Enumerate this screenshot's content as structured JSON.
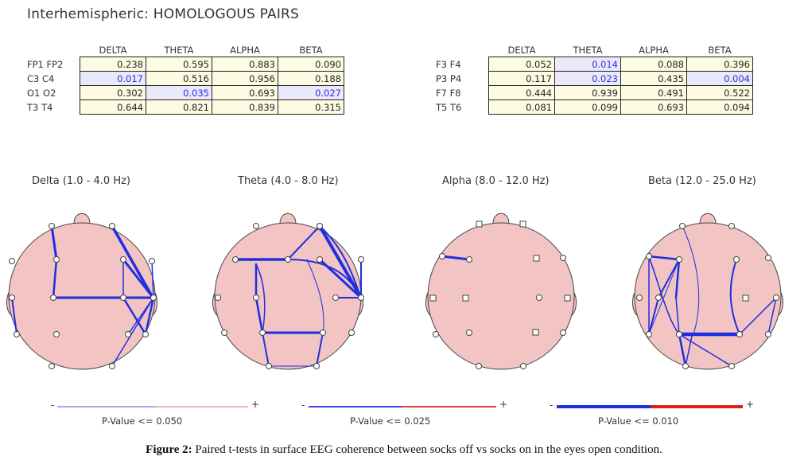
{
  "title": "Interhemispheric:  HOMOLOGOUS PAIRS",
  "bands": [
    "DELTA",
    "THETA",
    "ALPHA",
    "BETA"
  ],
  "table_left": {
    "rows": [
      {
        "label": "FP1  FP2",
        "values": [
          "0.238",
          "0.595",
          "0.883",
          "0.090"
        ],
        "sig": [
          false,
          false,
          false,
          false
        ]
      },
      {
        "label": "C3  C4",
        "values": [
          "0.017",
          "0.516",
          "0.956",
          "0.188"
        ],
        "sig": [
          true,
          false,
          false,
          false
        ]
      },
      {
        "label": "O1  O2",
        "values": [
          "0.302",
          "0.035",
          "0.693",
          "0.027"
        ],
        "sig": [
          false,
          true,
          false,
          true
        ]
      },
      {
        "label": "T3  T4",
        "values": [
          "0.644",
          "0.821",
          "0.839",
          "0.315"
        ],
        "sig": [
          false,
          false,
          false,
          false
        ]
      }
    ]
  },
  "table_right": {
    "rows": [
      {
        "label": "F3  F4",
        "values": [
          "0.052",
          "0.014",
          "0.088",
          "0.396"
        ],
        "sig": [
          false,
          true,
          false,
          false
        ]
      },
      {
        "label": "P3  P4",
        "values": [
          "0.117",
          "0.023",
          "0.435",
          "0.004"
        ],
        "sig": [
          false,
          true,
          false,
          true
        ]
      },
      {
        "label": "F7  F8",
        "values": [
          "0.444",
          "0.939",
          "0.491",
          "0.522"
        ],
        "sig": [
          false,
          false,
          false,
          false
        ]
      },
      {
        "label": "T5  T6",
        "values": [
          "0.081",
          "0.099",
          "0.693",
          "0.094"
        ],
        "sig": [
          false,
          false,
          false,
          false
        ]
      }
    ]
  },
  "heads": [
    {
      "label": "Delta (1.0 - 4.0 Hz)",
      "legend": "P-Value <= 0.050"
    },
    {
      "label": "Theta (4.0 - 8.0 Hz)",
      "legend": "P-Value <= 0.025"
    },
    {
      "label": "Alpha (8.0 - 12.0 Hz)",
      "legend": "P-Value <= 0.010"
    },
    {
      "label": "Beta (12.0 - 25.0 Hz)",
      "legend": ""
    }
  ],
  "legend_minus": "-",
  "legend_plus": "+",
  "caption_bold": "Figure 2:",
  "caption_text": " Paired t-tests in surface EEG coherence between socks off vs socks on in the eyes open condition.",
  "colors": {
    "head_fill": "#f2c4c4",
    "line_blue": "#1f2fe0",
    "line_red": "#e01f1f",
    "sig_cell": "#e9e9fb",
    "cell": "#fdfbe2"
  }
}
